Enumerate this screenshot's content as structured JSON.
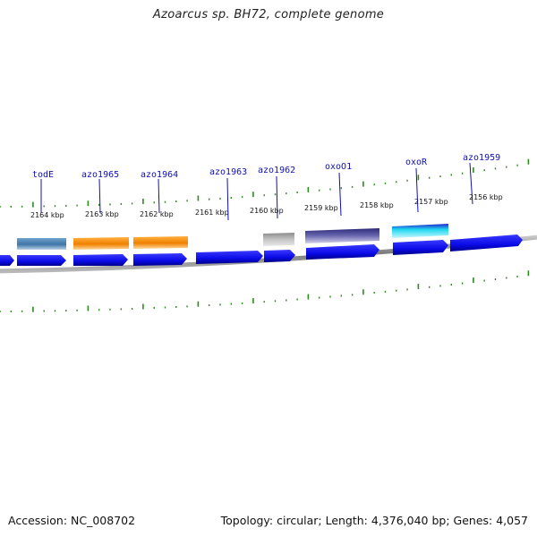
{
  "title": "Azoarcus sp. BH72, complete genome",
  "footer": {
    "accession": "Accession: NC_008702",
    "summary": "Topology: circular; Length: 4,376,040 bp; Genes: 4,057"
  },
  "colors": {
    "gene_blue": "#0a0ae6",
    "tick_green": "#2a8a1c",
    "label_blue": "#1010b0",
    "backbone_gray": "#8a8a8a"
  },
  "kbp_labels": [
    {
      "text": "2164 kbp",
      "kbp": 2164
    },
    {
      "text": "2163 kbp",
      "kbp": 2163
    },
    {
      "text": "2162 kbp",
      "kbp": 2162
    },
    {
      "text": "2161 kbp",
      "kbp": 2161
    },
    {
      "text": "2160 kbp",
      "kbp": 2160
    },
    {
      "text": "2159 kbp",
      "kbp": 2159
    },
    {
      "text": "2158 kbp",
      "kbp": 2158
    },
    {
      "text": "2157 kbp",
      "kbp": 2157
    },
    {
      "text": "2156 kbp",
      "kbp": 2156
    }
  ],
  "gene_labels": [
    {
      "name": "todE"
    },
    {
      "name": "azo1965"
    },
    {
      "name": "azo1964"
    },
    {
      "name": "azo1963"
    },
    {
      "name": "azo1962"
    },
    {
      "name": "oxoO1"
    },
    {
      "name": "oxoR"
    },
    {
      "name": "azo1959"
    }
  ],
  "feature_colors": {
    "todE": "#4a7fb0",
    "azo1965": "#f08a10",
    "azo1964": "#f08a10",
    "azo1962": "#b0b0b0",
    "oxoO1": "#3c3a8c",
    "oxoR": "#1fd8f0"
  }
}
